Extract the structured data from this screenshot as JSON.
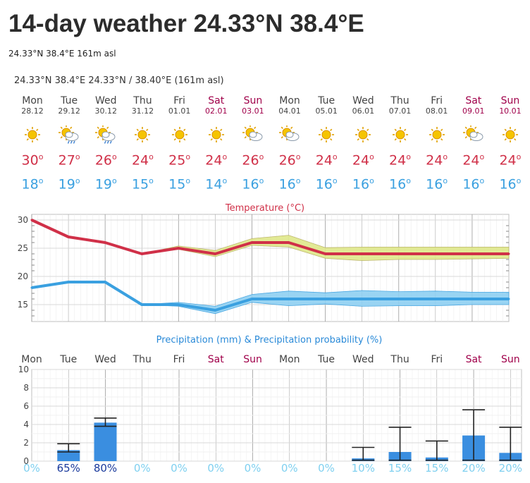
{
  "header": {
    "title": "14-day weather 24.33°N 38.4°E",
    "subtitle": "24.33°N 38.4°E 161m asl",
    "location_line": "24.33°N 38.4°E  24.33°N / 38.40°E (161m asl)"
  },
  "days": [
    {
      "name": "Mon",
      "date": "28.12",
      "weekend": false,
      "icon": "sun-icon",
      "max": "30",
      "min": "18"
    },
    {
      "name": "Tue",
      "date": "29.12",
      "weekend": false,
      "icon": "sun-cloud-rain-icon",
      "max": "27",
      "min": "19"
    },
    {
      "name": "Wed",
      "date": "30.12",
      "weekend": false,
      "icon": "sun-cloud-rain-icon",
      "max": "26",
      "min": "19"
    },
    {
      "name": "Thu",
      "date": "31.12",
      "weekend": false,
      "icon": "sun-icon",
      "max": "24",
      "min": "15"
    },
    {
      "name": "Fri",
      "date": "01.01",
      "weekend": false,
      "icon": "sun-icon",
      "max": "25",
      "min": "15"
    },
    {
      "name": "Sat",
      "date": "02.01",
      "weekend": true,
      "icon": "sun-icon",
      "max": "24",
      "min": "14"
    },
    {
      "name": "Sun",
      "date": "03.01",
      "weekend": true,
      "icon": "sun-cloud-icon",
      "max": "26",
      "min": "16"
    },
    {
      "name": "Mon",
      "date": "04.01",
      "weekend": false,
      "icon": "sun-cloud-icon",
      "max": "26",
      "min": "16"
    },
    {
      "name": "Tue",
      "date": "05.01",
      "weekend": false,
      "icon": "sun-icon",
      "max": "24",
      "min": "16"
    },
    {
      "name": "Wed",
      "date": "06.01",
      "weekend": false,
      "icon": "sun-icon",
      "max": "24",
      "min": "16"
    },
    {
      "name": "Thu",
      "date": "07.01",
      "weekend": false,
      "icon": "sun-icon",
      "max": "24",
      "min": "16"
    },
    {
      "name": "Fri",
      "date": "08.01",
      "weekend": false,
      "icon": "sun-icon",
      "max": "24",
      "min": "16"
    },
    {
      "name": "Sat",
      "date": "09.01",
      "weekend": true,
      "icon": "sun-cloud-icon",
      "max": "24",
      "min": "16"
    },
    {
      "name": "Sun",
      "date": "10.01",
      "weekend": true,
      "icon": "sun-icon",
      "max": "24",
      "min": "16"
    }
  ],
  "colors": {
    "max_line": "#d03048",
    "min_line": "#3aa0e0",
    "max_band": "#dfe88a",
    "min_band": "#8fd0f2",
    "bar": "#3a8ee0",
    "weekend": "#a0004a",
    "prob_strong": "#1a3a9c",
    "prob_weak": "#7fd0f0",
    "grid": "#d8d8d8"
  },
  "chart_data": [
    {
      "type": "line",
      "title": "Temperature (°C)",
      "x": [
        "28.12",
        "29.12",
        "30.12",
        "31.12",
        "01.01",
        "02.01",
        "03.01",
        "04.01",
        "05.01",
        "06.01",
        "07.01",
        "08.01",
        "09.01",
        "10.01"
      ],
      "ylim": [
        12,
        31
      ],
      "yticks": [
        "15",
        "20",
        "25",
        "30"
      ],
      "grid": true,
      "series": [
        {
          "values": [
            30,
            27,
            26,
            24,
            25,
            24,
            26,
            26,
            24,
            24,
            24,
            24,
            24,
            24
          ],
          "band_low": [
            30,
            27,
            26,
            24,
            24.8,
            23.5,
            25.5,
            25.2,
            23.2,
            22.8,
            23,
            23,
            23.1,
            23.2
          ],
          "band_high": [
            30,
            27,
            26,
            24,
            25.4,
            24.6,
            26.7,
            27.3,
            25.1,
            25.2,
            25.2,
            25.2,
            25.2,
            25.2
          ]
        },
        {
          "values": [
            18,
            19,
            19,
            15,
            15,
            14,
            16,
            16,
            16,
            16,
            16,
            16,
            16,
            16
          ],
          "band_low": [
            18,
            19,
            19,
            15,
            14.7,
            13.4,
            15.4,
            14.8,
            15.1,
            14.7,
            14.8,
            14.8,
            15,
            15
          ],
          "band_high": [
            18,
            19,
            19,
            15,
            15.4,
            14.7,
            16.8,
            17.4,
            17.1,
            17.5,
            17.3,
            17.4,
            17.2,
            17.2
          ]
        }
      ]
    },
    {
      "type": "bar",
      "title": "Precipitation (mm) & Precipitation probability (%)",
      "categories": [
        "Mon",
        "Tue",
        "Wed",
        "Thu",
        "Fri",
        "Sat",
        "Sun",
        "Mon",
        "Tue",
        "Wed",
        "Thu",
        "Fri",
        "Sat",
        "Sun"
      ],
      "ylim": [
        0,
        10
      ],
      "yticks": [
        "0",
        "2",
        "4",
        "6",
        "8",
        "10"
      ],
      "values": [
        0,
        1.2,
        4.2,
        0,
        0,
        0,
        0,
        0,
        0,
        0.3,
        1.0,
        0.4,
        2.8,
        0.9
      ],
      "error_low": [
        null,
        1.0,
        3.8,
        null,
        null,
        null,
        null,
        null,
        null,
        0.1,
        0.1,
        0.1,
        0.1,
        0.1
      ],
      "error_high": [
        null,
        1.9,
        4.7,
        null,
        null,
        null,
        null,
        null,
        null,
        1.5,
        3.7,
        2.2,
        5.6,
        3.7
      ],
      "probability": [
        "0%",
        "65%",
        "80%",
        "0%",
        "0%",
        "0%",
        "0%",
        "0%",
        "0%",
        "10%",
        "15%",
        "15%",
        "20%",
        "20%"
      ],
      "grid": true
    }
  ]
}
